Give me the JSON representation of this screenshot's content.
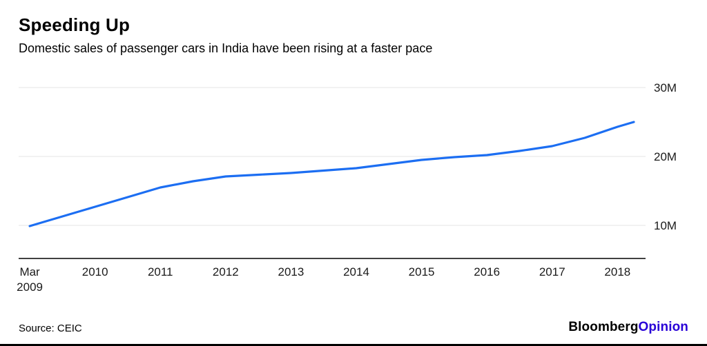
{
  "header": {
    "title": "Speeding Up",
    "subtitle": "Domestic sales of passenger cars in India have been rising at a faster pace"
  },
  "footer": {
    "source": "Source: CEIC",
    "brand_black": "Bloomberg",
    "brand_accent": "Opinion"
  },
  "colors": {
    "line": "#1c6ef2",
    "grid": "#e4e4e4",
    "axis": "#000000",
    "tick_text": "#1a1a1a",
    "brand_accent": "#2800d7"
  },
  "chart_data": {
    "type": "line",
    "title": "Speeding Up",
    "subtitle": "Domestic sales of passenger cars in India have been rising at a faster pace",
    "source": "Source: CEIC",
    "y_unit": "M",
    "xlim": [
      2009.0,
      2018.6
    ],
    "ylim": [
      5.2,
      32.0
    ],
    "grid": "horizontal-only",
    "x": [
      2009.17,
      2009.42,
      2009.67,
      2009.92,
      2010.17,
      2010.67,
      2011.17,
      2011.67,
      2012.17,
      2012.67,
      2013.17,
      2013.67,
      2014.17,
      2014.67,
      2015.17,
      2015.67,
      2016.17,
      2016.67,
      2017.17,
      2017.67,
      2018.17,
      2018.42
    ],
    "values": [
      9.9,
      10.6,
      11.3,
      12.0,
      12.7,
      14.1,
      15.5,
      16.4,
      17.1,
      17.35,
      17.6,
      17.95,
      18.3,
      18.9,
      19.5,
      19.9,
      20.2,
      20.8,
      21.5,
      22.7,
      24.3,
      25.0
    ],
    "x_ticks": [
      {
        "v": 2009.17,
        "lines": [
          "Mar",
          "2009"
        ]
      },
      {
        "v": 2010.17,
        "lines": [
          "2010"
        ]
      },
      {
        "v": 2011.17,
        "lines": [
          "2011"
        ]
      },
      {
        "v": 2012.17,
        "lines": [
          "2012"
        ]
      },
      {
        "v": 2013.17,
        "lines": [
          "2013"
        ]
      },
      {
        "v": 2014.17,
        "lines": [
          "2014"
        ]
      },
      {
        "v": 2015.17,
        "lines": [
          "2015"
        ]
      },
      {
        "v": 2016.17,
        "lines": [
          "2016"
        ]
      },
      {
        "v": 2017.17,
        "lines": [
          "2017"
        ]
      },
      {
        "v": 2018.17,
        "lines": [
          "2018"
        ]
      }
    ],
    "y_ticks": [
      {
        "v": 10,
        "label": "10M"
      },
      {
        "v": 20,
        "label": "20M"
      },
      {
        "v": 30,
        "label": "30M"
      }
    ]
  }
}
